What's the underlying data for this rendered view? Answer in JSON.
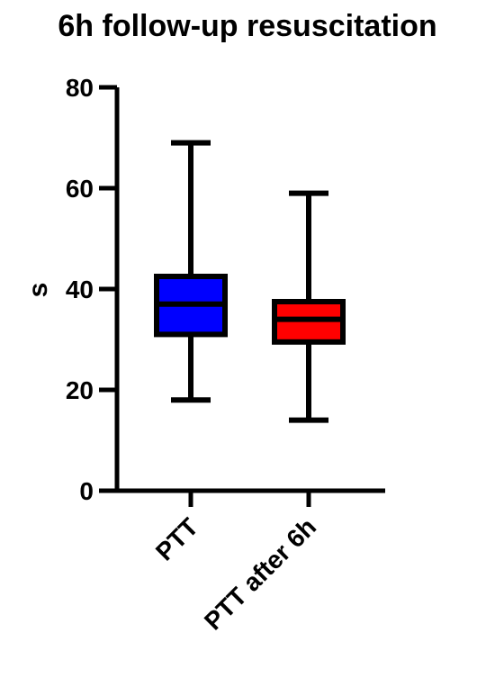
{
  "chart_data": {
    "type": "boxplot",
    "title": "6h follow-up resuscitation",
    "xlabel": "",
    "ylabel": "s",
    "ylim": [
      0,
      80
    ],
    "yticks": [
      0,
      20,
      40,
      60,
      80
    ],
    "grid": false,
    "categories": [
      "PTT",
      "PTT after 6h"
    ],
    "series": [
      {
        "category": "PTT",
        "min": 18,
        "q1": 31,
        "median": 37,
        "q3": 42.5,
        "max": 69,
        "color": "#0000ff"
      },
      {
        "category": "PTT after 6h",
        "min": 14,
        "q1": 29.5,
        "median": 34,
        "q3": 37.5,
        "max": 59,
        "color": "#ff0000"
      }
    ]
  }
}
